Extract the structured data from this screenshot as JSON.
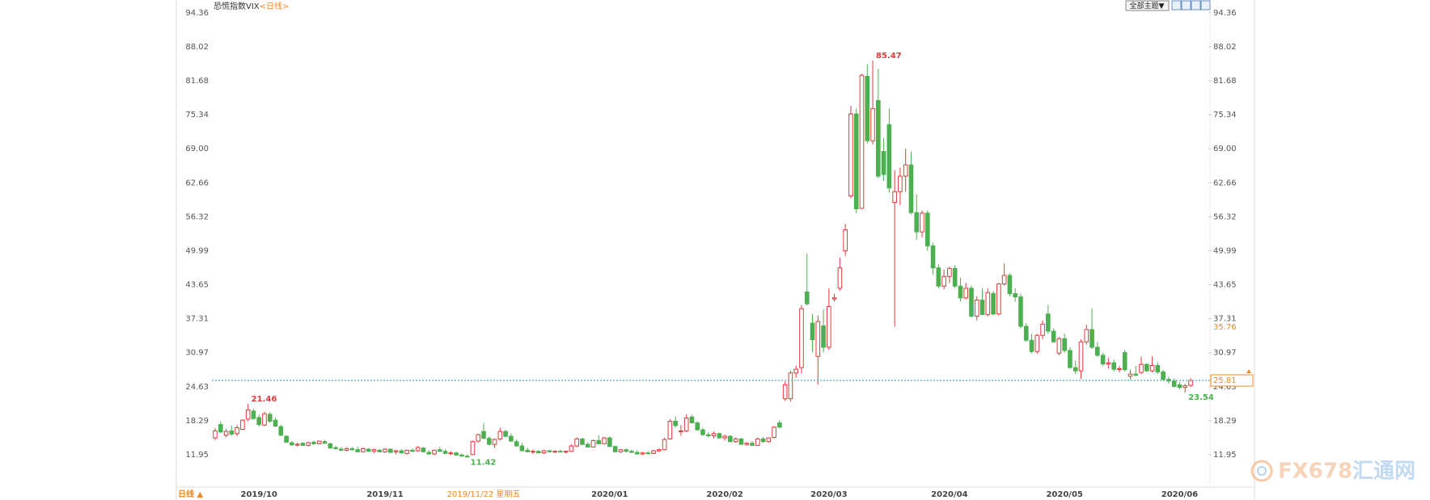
{
  "chart_data": {
    "type": "candlestick",
    "title": "恐慌指数VIX",
    "period": "<日线>",
    "ylim": [
      5.93,
      96.74
    ],
    "yticks": [
      94.36,
      88.02,
      81.68,
      75.34,
      {
        "value": 69,
        "label": "69.00"
      },
      62.66,
      56.32,
      49.99,
      43.65,
      37.31,
      30.97,
      24.63,
      18.29,
      11.95
    ],
    "grid": false,
    "up_color": "#e03a3a",
    "down_color": "#4caf50",
    "last_line_color": "#3bb3c3",
    "crosshair_price": 35.76,
    "crosshair_color": "#f08a24",
    "categories": [
      null,
      null,
      null,
      null,
      null,
      null,
      null,
      null,
      "2019/10",
      null,
      null,
      null,
      null,
      null,
      null,
      null,
      null,
      null,
      null,
      null,
      null,
      null,
      null,
      null,
      null,
      null,
      null,
      null,
      null,
      null,
      null,
      "2019/11",
      null,
      null,
      null,
      null,
      null,
      null,
      null,
      null,
      null,
      null,
      null,
      null,
      null,
      null,
      null,
      null,
      null,
      "2019/11/22 星期五",
      null,
      null,
      null,
      null,
      null,
      null,
      null,
      null,
      null,
      null,
      null,
      null,
      null,
      null,
      null,
      null,
      null,
      null,
      null,
      null,
      null,
      null,
      "2020/01",
      null,
      null,
      null,
      null,
      null,
      null,
      null,
      null,
      null,
      null,
      null,
      null,
      null,
      null,
      null,
      null,
      null,
      null,
      null,
      null,
      "2020/02",
      null,
      null,
      null,
      null,
      null,
      null,
      null,
      null,
      null,
      null,
      null,
      null,
      null,
      null,
      null,
      null,
      null,
      null,
      "2020/03",
      null,
      null,
      null,
      null,
      null,
      null,
      null,
      null,
      null,
      null,
      null,
      null,
      null,
      null,
      null,
      null,
      null,
      null,
      null,
      null,
      null,
      "2020/04",
      null,
      null,
      null,
      null,
      null,
      null,
      null,
      null,
      null,
      null,
      null,
      null,
      null,
      null,
      null,
      null,
      null,
      null,
      null,
      null,
      "2020/05",
      null,
      null,
      null,
      null,
      null,
      null,
      null,
      null,
      null,
      null,
      null,
      null,
      null,
      null,
      null,
      null,
      null,
      null,
      null,
      null,
      "2020/06",
      null,
      null
    ],
    "ohlc": [
      [
        15.1,
        16.9,
        14.7,
        16.4
      ],
      [
        17.6,
        18.2,
        16.0,
        16.2
      ],
      [
        15.6,
        16.8,
        15.2,
        16.3
      ],
      [
        16.4,
        17.4,
        15.5,
        15.8
      ],
      [
        15.9,
        17.5,
        15.4,
        17.0
      ],
      [
        16.7,
        18.6,
        16.5,
        18.4
      ],
      [
        18.6,
        21.46,
        18.2,
        20.3
      ],
      [
        20.1,
        20.5,
        18.5,
        18.7
      ],
      [
        18.9,
        19.4,
        17.2,
        17.6
      ],
      [
        17.5,
        20.0,
        17.3,
        19.6
      ],
      [
        19.5,
        19.9,
        17.9,
        18.2
      ],
      [
        18.4,
        18.9,
        17.1,
        17.3
      ],
      [
        17.2,
        17.5,
        15.4,
        15.6
      ],
      [
        15.4,
        15.6,
        14.2,
        14.3
      ],
      [
        14.2,
        14.5,
        13.6,
        13.8
      ],
      [
        13.8,
        14.2,
        13.5,
        13.9
      ],
      [
        14.1,
        14.3,
        13.6,
        13.7
      ],
      [
        13.7,
        14.4,
        13.5,
        14.2
      ],
      [
        14.3,
        14.6,
        13.8,
        14.0
      ],
      [
        14.0,
        14.6,
        13.9,
        14.5
      ],
      [
        14.4,
        14.7,
        14.0,
        14.1
      ],
      [
        14.0,
        14.2,
        13.1,
        13.2
      ],
      [
        13.3,
        13.6,
        12.9,
        13.1
      ],
      [
        13.0,
        13.4,
        12.6,
        12.8
      ],
      [
        12.8,
        13.3,
        12.6,
        13.1
      ],
      [
        13.1,
        13.4,
        12.7,
        12.9
      ],
      [
        12.9,
        13.4,
        12.4,
        12.5
      ],
      [
        12.5,
        13.3,
        12.4,
        13.1
      ],
      [
        13.0,
        13.2,
        12.5,
        12.6
      ],
      [
        12.6,
        13.1,
        12.3,
        12.9
      ],
      [
        12.8,
        13.0,
        12.4,
        12.5
      ],
      [
        12.5,
        13.2,
        12.3,
        13.0
      ],
      [
        13.0,
        13.1,
        12.3,
        12.4
      ],
      [
        12.5,
        12.9,
        12.0,
        12.7
      ],
      [
        12.7,
        13.0,
        12.2,
        12.3
      ],
      [
        12.2,
        12.9,
        12.0,
        12.8
      ],
      [
        12.8,
        13.1,
        12.5,
        12.6
      ],
      [
        12.7,
        13.6,
        12.5,
        13.3
      ],
      [
        13.2,
        13.4,
        12.4,
        12.5
      ],
      [
        12.4,
        12.8,
        12.0,
        12.1
      ],
      [
        12.1,
        12.9,
        11.9,
        12.8
      ],
      [
        12.9,
        13.4,
        12.5,
        12.6
      ],
      [
        12.6,
        13.0,
        12.1,
        12.2
      ],
      [
        12.2,
        12.6,
        11.9,
        12.3
      ],
      [
        12.3,
        12.5,
        11.8,
        11.9
      ],
      [
        11.9,
        12.2,
        11.6,
        11.7
      ],
      [
        11.7,
        12.0,
        11.42,
        11.6
      ],
      [
        12.0,
        14.6,
        11.9,
        14.4
      ],
      [
        14.5,
        15.9,
        14.2,
        15.7
      ],
      [
        16.3,
        17.9,
        14.9,
        15.0
      ],
      [
        15.0,
        15.4,
        13.7,
        13.9
      ],
      [
        13.9,
        15.0,
        13.2,
        14.8
      ],
      [
        14.9,
        17.0,
        14.6,
        16.3
      ],
      [
        16.3,
        16.6,
        15.2,
        15.4
      ],
      [
        15.4,
        15.9,
        14.4,
        14.5
      ],
      [
        14.4,
        14.8,
        13.5,
        13.6
      ],
      [
        13.6,
        14.2,
        12.6,
        12.7
      ],
      [
        12.8,
        13.3,
        12.4,
        12.5
      ],
      [
        12.5,
        12.9,
        12.1,
        12.6
      ],
      [
        12.6,
        12.8,
        12.2,
        12.3
      ],
      [
        12.3,
        12.9,
        12.1,
        12.7
      ],
      [
        12.7,
        12.9,
        12.4,
        12.5
      ],
      [
        12.5,
        12.8,
        12.3,
        12.6
      ],
      [
        12.6,
        12.9,
        12.4,
        12.5
      ],
      [
        12.5,
        12.7,
        12.2,
        12.6
      ],
      [
        12.6,
        13.9,
        12.5,
        13.6
      ],
      [
        13.6,
        15.2,
        13.4,
        14.9
      ],
      [
        14.9,
        15.1,
        13.7,
        13.9
      ],
      [
        13.9,
        14.3,
        13.3,
        13.4
      ],
      [
        13.4,
        14.8,
        13.3,
        14.6
      ],
      [
        14.6,
        15.6,
        13.9,
        14.0
      ],
      [
        14.0,
        15.3,
        13.9,
        15.1
      ],
      [
        15.1,
        15.4,
        13.4,
        13.5
      ],
      [
        13.5,
        13.6,
        12.4,
        12.5
      ],
      [
        12.5,
        13.0,
        12.3,
        12.9
      ],
      [
        12.9,
        13.1,
        12.4,
        12.6
      ],
      [
        12.6,
        12.9,
        12.3,
        12.4
      ],
      [
        12.4,
        12.8,
        12.0,
        12.1
      ],
      [
        12.1,
        12.5,
        11.9,
        12.3
      ],
      [
        12.3,
        12.6,
        12.0,
        12.2
      ],
      [
        12.2,
        12.9,
        12.1,
        12.7
      ],
      [
        12.7,
        13.1,
        12.5,
        12.9
      ],
      [
        12.9,
        15.1,
        12.8,
        14.8
      ],
      [
        14.9,
        18.6,
        14.8,
        18.2
      ],
      [
        18.2,
        19.1,
        17.0,
        17.4
      ],
      [
        16.3,
        17.5,
        15.5,
        16.4
      ],
      [
        16.4,
        19.5,
        16.2,
        18.8
      ],
      [
        19.0,
        19.4,
        17.8,
        17.9
      ],
      [
        17.9,
        18.2,
        16.5,
        16.6
      ],
      [
        16.6,
        17.0,
        15.5,
        15.7
      ],
      [
        15.7,
        16.2,
        15.2,
        15.5
      ],
      [
        15.5,
        16.3,
        15.0,
        15.9
      ],
      [
        15.9,
        16.1,
        15.0,
        15.1
      ],
      [
        15.1,
        15.7,
        14.6,
        15.4
      ],
      [
        15.4,
        15.6,
        14.3,
        14.4
      ],
      [
        14.4,
        15.2,
        14.2,
        14.9
      ],
      [
        14.9,
        15.1,
        13.8,
        13.9
      ],
      [
        13.9,
        14.3,
        13.6,
        14.1
      ],
      [
        14.1,
        14.5,
        13.6,
        13.7
      ],
      [
        13.7,
        15.1,
        13.6,
        14.9
      ],
      [
        14.9,
        15.3,
        14.2,
        14.4
      ],
      [
        14.4,
        15.2,
        14.2,
        15.1
      ],
      [
        15.2,
        17.3,
        15.0,
        17.1
      ],
      [
        17.9,
        18.4,
        16.9,
        17.1
      ],
      [
        22.4,
        25.6,
        22.0,
        25.0
      ],
      [
        22.4,
        27.6,
        21.9,
        27.2
      ],
      [
        27.2,
        28.6,
        26.3,
        27.9
      ],
      [
        28.2,
        39.9,
        27.1,
        39.2
      ],
      [
        42.3,
        49.5,
        39.8,
        40.1
      ],
      [
        36.5,
        38.2,
        31.0,
        33.4
      ],
      [
        30.3,
        37.9,
        25.0,
        36.8
      ],
      [
        36.0,
        39.0,
        31.0,
        32.0
      ],
      [
        32.0,
        43.0,
        31.5,
        39.6
      ],
      [
        41.0,
        42.0,
        40.5,
        41.2
      ],
      [
        43.0,
        48.7,
        42.5,
        46.8
      ],
      [
        50.0,
        55.0,
        49.0,
        53.9
      ],
      [
        60.2,
        77.0,
        59.8,
        75.5
      ],
      [
        75.5,
        76.5,
        57.0,
        57.8
      ],
      [
        57.9,
        83.0,
        57.8,
        82.7
      ],
      [
        82.5,
        84.8,
        70.0,
        70.5
      ],
      [
        70.5,
        85.47,
        69.8,
        76.5
      ],
      [
        78.0,
        83.9,
        63.5,
        63.9
      ],
      [
        68.5,
        71.0,
        63.0,
        64.2
      ],
      [
        73.5,
        76.5,
        60.8,
        61.7
      ],
      [
        59.0,
        65.0,
        35.8,
        61.0
      ],
      [
        61.0,
        65.5,
        58.5,
        63.9
      ],
      [
        63.9,
        69.0,
        61.0,
        66.0
      ],
      [
        66.0,
        68.5,
        56.8,
        57.1
      ],
      [
        57.1,
        60.5,
        52.0,
        53.5
      ],
      [
        53.5,
        57.5,
        52.5,
        57.0
      ],
      [
        57.0,
        57.5,
        50.0,
        50.9
      ],
      [
        50.9,
        51.5,
        45.5,
        46.8
      ],
      [
        46.8,
        47.5,
        43.0,
        43.4
      ],
      [
        43.4,
        46.5,
        42.8,
        45.2
      ],
      [
        45.2,
        47.0,
        44.0,
        46.7
      ],
      [
        46.7,
        47.3,
        43.0,
        43.4
      ],
      [
        43.4,
        45.0,
        40.5,
        41.2
      ],
      [
        41.2,
        44.0,
        40.9,
        43.0
      ],
      [
        43.0,
        43.5,
        37.5,
        37.8
      ],
      [
        37.8,
        41.5,
        37.0,
        40.8
      ],
      [
        40.8,
        43.0,
        38.0,
        38.1
      ],
      [
        38.1,
        43.0,
        37.8,
        42.2
      ],
      [
        42.0,
        42.5,
        38.0,
        38.2
      ],
      [
        38.2,
        44.0,
        38.0,
        43.8
      ],
      [
        43.8,
        47.6,
        43.5,
        45.4
      ],
      [
        45.4,
        45.8,
        41.5,
        41.98
      ],
      [
        42.0,
        43.0,
        40.5,
        41.38
      ],
      [
        41.4,
        42.0,
        35.5,
        35.9
      ],
      [
        35.9,
        36.5,
        33.0,
        33.3
      ],
      [
        33.3,
        34.5,
        30.9,
        31.2
      ],
      [
        31.2,
        34.5,
        30.8,
        34.2
      ],
      [
        34.2,
        37.0,
        33.5,
        36.3
      ],
      [
        38.2,
        39.9,
        34.5,
        35.0
      ],
      [
        35.0,
        35.5,
        32.8,
        33.0
      ],
      [
        30.9,
        33.9,
        30.5,
        33.6
      ],
      [
        33.6,
        34.5,
        31.0,
        31.4
      ],
      [
        31.4,
        32.0,
        28.0,
        28.2
      ],
      [
        28.2,
        29.5,
        27.0,
        27.6
      ],
      [
        27.6,
        33.5,
        26.1,
        33.0
      ],
      [
        33.0,
        36.2,
        32.5,
        35.3
      ],
      [
        35.3,
        39.2,
        31.7,
        32.0
      ],
      [
        32.0,
        33.0,
        30.2,
        30.5
      ],
      [
        30.5,
        31.0,
        28.5,
        28.9
      ],
      [
        28.9,
        30.0,
        28.0,
        29.1
      ],
      [
        29.1,
        29.7,
        27.5,
        27.9
      ],
      [
        27.9,
        28.5,
        27.3,
        28.0
      ],
      [
        31.0,
        31.5,
        27.5,
        27.8
      ],
      [
        26.6,
        27.8,
        26.0,
        27.0
      ],
      [
        27.0,
        28.5,
        26.6,
        26.8
      ],
      [
        27.3,
        30.2,
        27.0,
        28.8
      ],
      [
        28.8,
        29.0,
        27.4,
        27.6
      ],
      [
        27.6,
        30.3,
        27.3,
        28.6
      ],
      [
        28.6,
        29.2,
        27.0,
        27.4
      ],
      [
        27.4,
        27.8,
        25.8,
        26.0
      ],
      [
        26.0,
        26.5,
        25.2,
        25.7
      ],
      [
        25.7,
        26.2,
        24.5,
        24.7
      ],
      [
        25.0,
        25.5,
        24.2,
        24.5
      ],
      [
        24.5,
        25.2,
        23.54,
        24.8
      ],
      [
        24.9,
        26.2,
        24.6,
        25.81
      ]
    ]
  },
  "toolbar": {
    "theme_button": "全部主题▼"
  },
  "footer": {
    "period_toggle": "日线 ▲"
  },
  "logo": {
    "latin": "FX678",
    "cn": "汇通网"
  }
}
